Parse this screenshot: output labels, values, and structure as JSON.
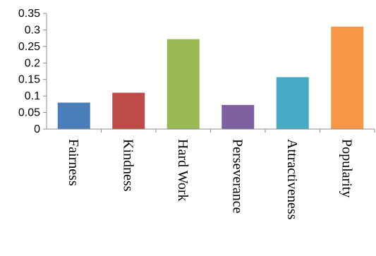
{
  "chart_data": {
    "type": "bar",
    "categories": [
      "Fairness",
      "Kindness",
      "Hard Work",
      "Perseverance",
      "Attractiveness",
      "Popularity"
    ],
    "values": [
      0.08,
      0.11,
      0.272,
      0.073,
      0.157,
      0.31
    ],
    "yticks": [
      "0",
      "0.05",
      "0.1",
      "0.15",
      "0.2",
      "0.25",
      "0.3",
      "0.35"
    ],
    "ylim": [
      0,
      0.35
    ],
    "grid": false,
    "colors": [
      "#4a7ebb",
      "#be4b48",
      "#98b954",
      "#7d60a0",
      "#46aac5",
      "#f69646"
    ]
  }
}
